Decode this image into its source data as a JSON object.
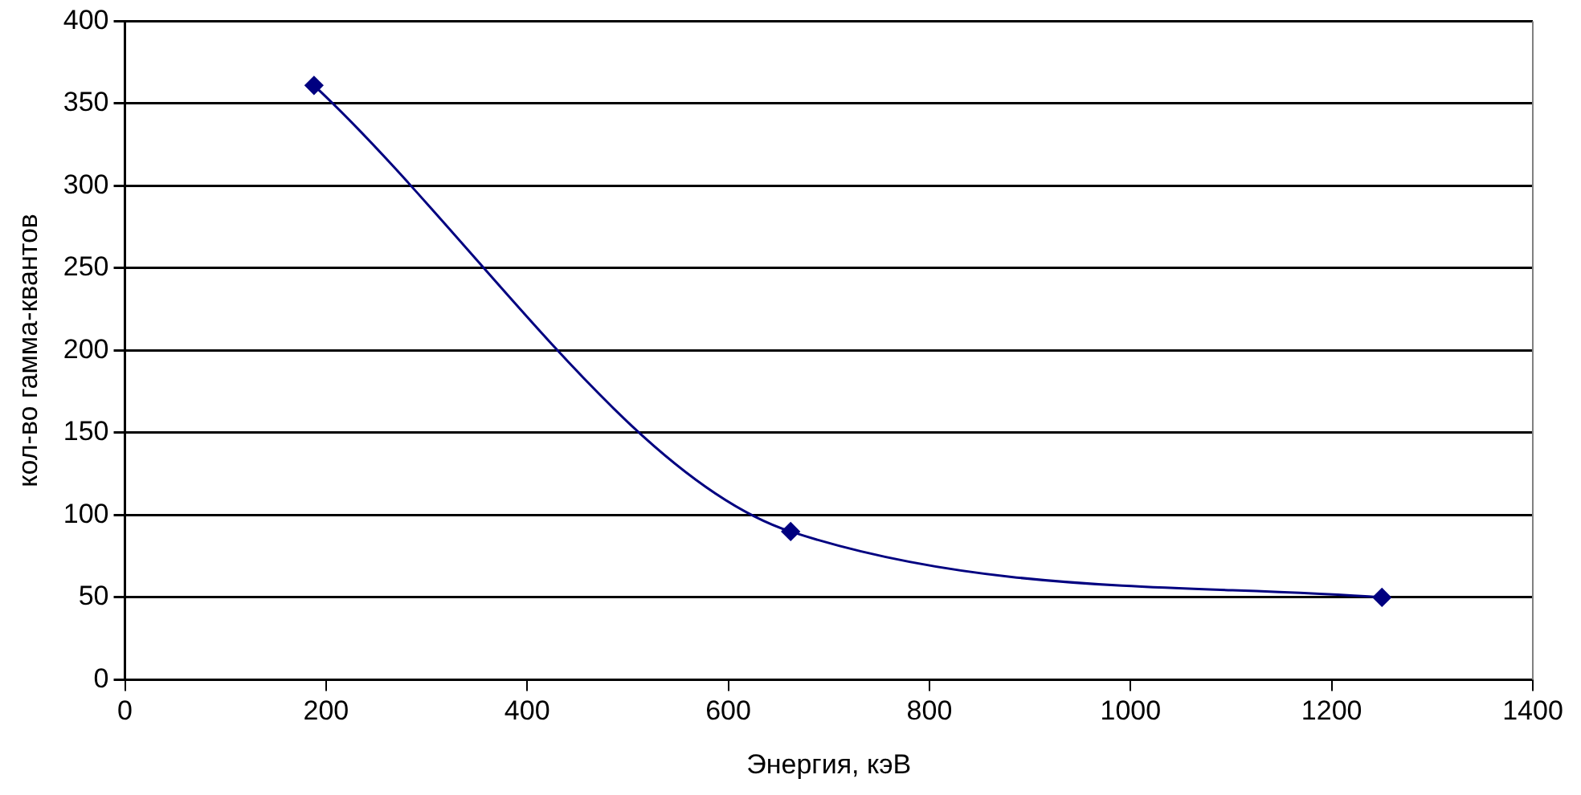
{
  "chart_data": {
    "type": "line",
    "xlabel": "Энергия, кэВ",
    "ylabel": "кол-во гамма-квантов",
    "x": [
      188,
      662,
      1250
    ],
    "series": [
      {
        "color": "#000080",
        "values": [
          361,
          90,
          50
        ]
      }
    ],
    "xlim": [
      0,
      1400
    ],
    "xticks": [
      0,
      200,
      400,
      600,
      800,
      1000,
      1200,
      1400
    ],
    "ylim": [
      0,
      400
    ],
    "yticks": [
      0,
      50,
      100,
      150,
      200,
      250,
      300,
      350,
      400
    ],
    "grid": "y",
    "legend": false,
    "marker": "diamond",
    "line_style": "solid"
  }
}
